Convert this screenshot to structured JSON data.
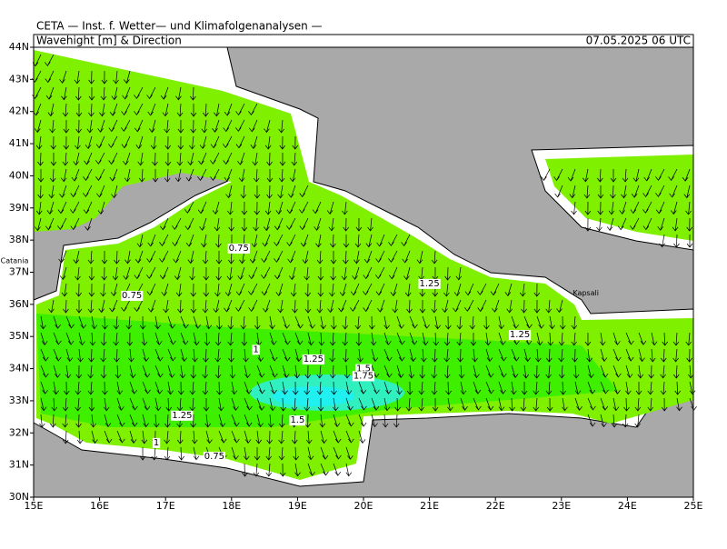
{
  "header": "CETA — Inst. f. Wetter— und Klimafolgenanalysen —",
  "title": "Wavehight [m] & Direction",
  "timestamp": "07.05.2025 06 UTC",
  "lon_ticks": [
    {
      "value": 15,
      "label": "15E"
    },
    {
      "value": 16,
      "label": "16E"
    },
    {
      "value": 17,
      "label": "17E"
    },
    {
      "value": 18,
      "label": "18E"
    },
    {
      "value": 19,
      "label": "19E"
    },
    {
      "value": 20,
      "label": "20E"
    },
    {
      "value": 21,
      "label": "21E"
    },
    {
      "value": 22,
      "label": "22E"
    },
    {
      "value": 23,
      "label": "23E"
    },
    {
      "value": 24,
      "label": "24E"
    },
    {
      "value": 25,
      "label": "25E"
    }
  ],
  "lat_ticks": [
    {
      "value": 30,
      "label": "30N"
    },
    {
      "value": 31,
      "label": "31N"
    },
    {
      "value": 32,
      "label": "32N"
    },
    {
      "value": 33,
      "label": "33N"
    },
    {
      "value": 34,
      "label": "34N"
    },
    {
      "value": 35,
      "label": "35N"
    },
    {
      "value": 36,
      "label": "36N"
    },
    {
      "value": 37,
      "label": "37N"
    },
    {
      "value": 38,
      "label": "38N"
    },
    {
      "value": 39,
      "label": "39N"
    },
    {
      "value": 40,
      "label": "40N"
    },
    {
      "value": 41,
      "label": "41N"
    },
    {
      "value": 42,
      "label": "42N"
    },
    {
      "value": 43,
      "label": "43N"
    },
    {
      "value": 44,
      "label": "44N"
    }
  ],
  "contour_labels": [
    {
      "value": 0.75,
      "lon": 18.11,
      "lat": 37.75
    },
    {
      "value": 0.75,
      "lon": 16.49,
      "lat": 36.28
    },
    {
      "value": 1.25,
      "lon": 21.0,
      "lat": 36.65
    },
    {
      "value": 1.25,
      "lon": 22.37,
      "lat": 35.06
    },
    {
      "value": 1,
      "lon": 18.37,
      "lat": 34.6
    },
    {
      "value": 1.25,
      "lon": 19.24,
      "lat": 34.3
    },
    {
      "value": 1.5,
      "lon": 20.0,
      "lat": 34.0
    },
    {
      "value": 1.75,
      "lon": 20.0,
      "lat": 33.78
    },
    {
      "value": 1.25,
      "lon": 17.25,
      "lat": 32.55
    },
    {
      "value": 1.5,
      "lon": 19.0,
      "lat": 32.4
    },
    {
      "value": 1,
      "lon": 16.86,
      "lat": 31.7
    },
    {
      "value": 0.75,
      "lon": 17.74,
      "lat": 31.27
    }
  ],
  "places": [
    {
      "name": "Catania",
      "lon": 14.71,
      "lat": 37.35
    },
    {
      "name": "Kapsali",
      "lon": 23.37,
      "lat": 36.35
    }
  ]
}
